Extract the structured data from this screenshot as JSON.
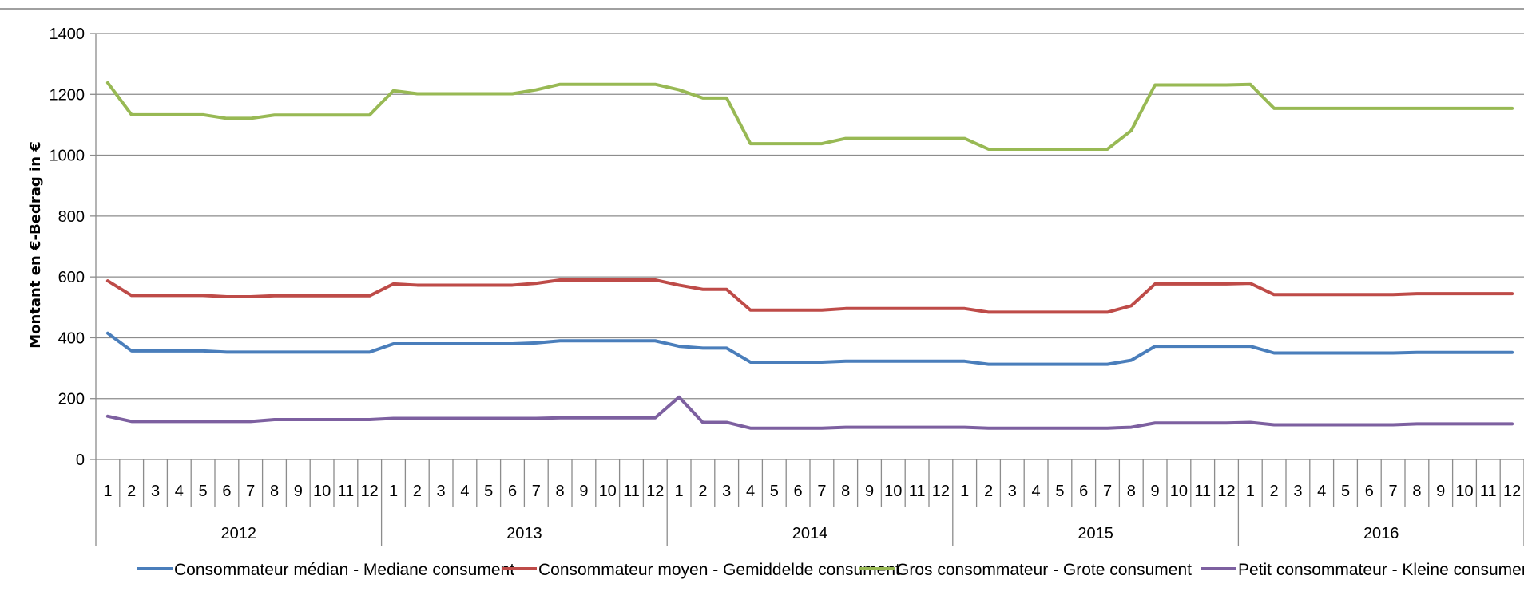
{
  "chart_data": {
    "type": "line",
    "title": "",
    "ylabel": "Montant en €-Bedrag in €",
    "xlabel": "",
    "ylim": [
      0,
      1400
    ],
    "yticks": [
      0,
      200,
      400,
      600,
      800,
      1000,
      1200,
      1400
    ],
    "grid": "horizontal",
    "legend_position": "bottom",
    "years": [
      "2012",
      "2013",
      "2014",
      "2015",
      "2016"
    ],
    "months": [
      "1",
      "2",
      "3",
      "4",
      "5",
      "6",
      "7",
      "8",
      "9",
      "10",
      "11",
      "12"
    ],
    "colors": {
      "Consommateur médian - Mediane consument": "#4a7ebb",
      "Consommateur moyen - Gemiddelde consument": "#be4b48",
      "Gros consommateur - Grote consument": "#98b954",
      "Petit consommateur - Kleine consument": "#7d60a0"
    },
    "series": [
      {
        "name": "Consommateur médian - Mediane consument",
        "values": [
          415,
          357,
          357,
          357,
          357,
          353,
          353,
          353,
          353,
          353,
          353,
          353,
          380,
          380,
          380,
          380,
          380,
          380,
          383,
          390,
          390,
          390,
          390,
          390,
          372,
          366,
          366,
          320,
          320,
          320,
          320,
          323,
          323,
          323,
          323,
          323,
          323,
          313,
          313,
          313,
          313,
          313,
          313,
          326,
          372,
          372,
          372,
          372,
          372,
          350,
          350,
          350,
          350,
          350,
          350,
          352,
          352,
          352,
          352,
          352
        ]
      },
      {
        "name": "Consommateur moyen - Gemiddelde consument",
        "values": [
          587,
          539,
          539,
          539,
          539,
          535,
          535,
          538,
          538,
          538,
          538,
          538,
          577,
          573,
          573,
          573,
          573,
          573,
          579,
          590,
          590,
          590,
          590,
          590,
          573,
          559,
          559,
          491,
          491,
          491,
          491,
          496,
          496,
          496,
          496,
          496,
          496,
          484,
          484,
          484,
          484,
          484,
          484,
          505,
          577,
          577,
          577,
          577,
          579,
          542,
          542,
          542,
          542,
          542,
          542,
          545,
          545,
          545,
          545,
          545
        ]
      },
      {
        "name": "Gros consommateur - Grote consument",
        "values": [
          1238,
          1133,
          1133,
          1133,
          1133,
          1121,
          1121,
          1132,
          1132,
          1132,
          1132,
          1132,
          1212,
          1202,
          1202,
          1202,
          1202,
          1202,
          1215,
          1233,
          1233,
          1233,
          1233,
          1233,
          1215,
          1188,
          1188,
          1038,
          1038,
          1038,
          1038,
          1055,
          1055,
          1055,
          1055,
          1055,
          1055,
          1020,
          1020,
          1020,
          1020,
          1020,
          1020,
          1081,
          1231,
          1231,
          1231,
          1231,
          1233,
          1154,
          1154,
          1154,
          1154,
          1154,
          1154,
          1154,
          1154,
          1154,
          1154,
          1154
        ]
      },
      {
        "name": "Petit consommateur - Kleine consument",
        "values": [
          142,
          125,
          125,
          125,
          125,
          125,
          125,
          131,
          131,
          131,
          131,
          131,
          135,
          135,
          135,
          135,
          135,
          135,
          135,
          137,
          137,
          137,
          137,
          137,
          205,
          122,
          122,
          103,
          103,
          103,
          103,
          106,
          106,
          106,
          106,
          106,
          106,
          103,
          103,
          103,
          103,
          103,
          103,
          106,
          120,
          120,
          120,
          120,
          122,
          114,
          114,
          114,
          114,
          114,
          114,
          117,
          117,
          117,
          117,
          117
        ]
      }
    ]
  }
}
